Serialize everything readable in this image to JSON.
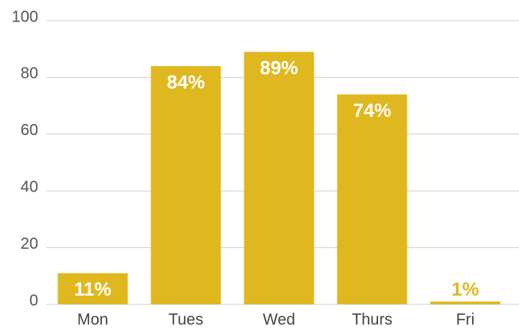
{
  "chart_data": {
    "type": "bar",
    "categories": [
      "Mon",
      "Tues",
      "Wed",
      "Thurs",
      "Fri"
    ],
    "values": [
      11,
      84,
      89,
      74,
      1
    ],
    "value_labels": [
      "11%",
      "84%",
      "89%",
      "74%",
      "1%"
    ],
    "color": "#dfb820",
    "ylim": [
      0,
      100
    ],
    "yticks": [
      0,
      20,
      40,
      60,
      80,
      100
    ],
    "grid": true
  }
}
